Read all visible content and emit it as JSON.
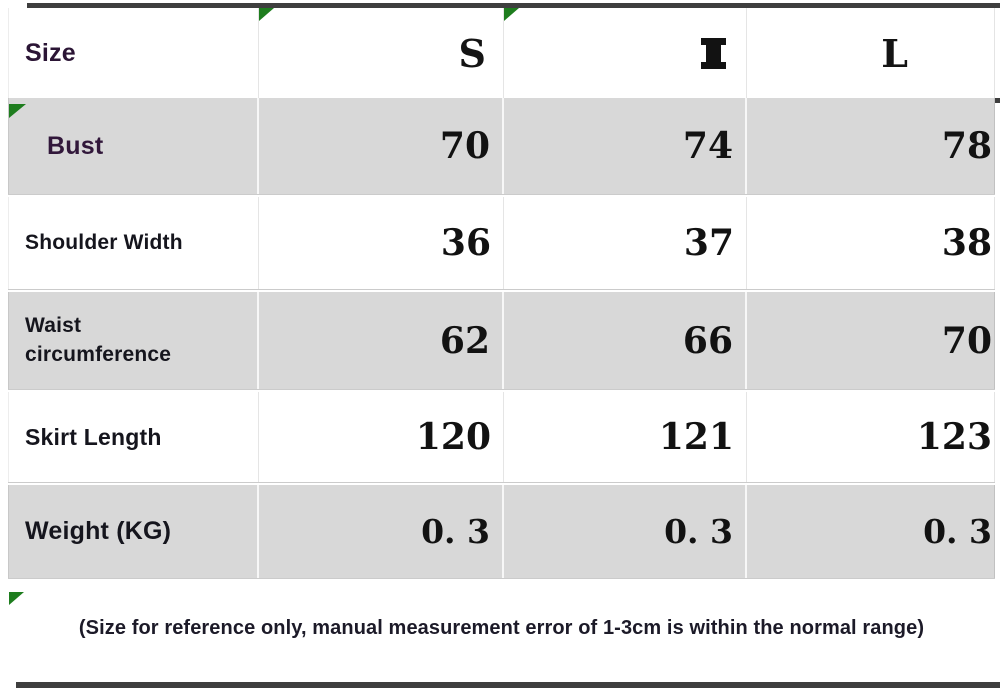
{
  "colors": {
    "row_shade_gray": "#d8d8d8",
    "marker_green": "#1e7d1e",
    "rule_dark": "#3e3e3e",
    "label_purple": "#2b1535"
  },
  "table": {
    "header": {
      "label": "Size",
      "sizes": [
        "S",
        "M",
        "L"
      ]
    },
    "rows": [
      {
        "label": "Bust",
        "values": [
          "70",
          "74",
          "78"
        ]
      },
      {
        "label": "Shoulder Width",
        "values": [
          "36",
          "37",
          "38"
        ]
      },
      {
        "label": "Waist circumference",
        "values": [
          "62",
          "66",
          "70"
        ]
      },
      {
        "label": "Skirt Length",
        "values": [
          "120",
          "121",
          "123"
        ]
      },
      {
        "label": "Weight (KG)",
        "values": [
          "0. 3",
          "0. 3",
          "0. 3"
        ]
      }
    ],
    "note": "(Size for reference only, manual measurement error of 1-3cm is within the normal range)"
  }
}
